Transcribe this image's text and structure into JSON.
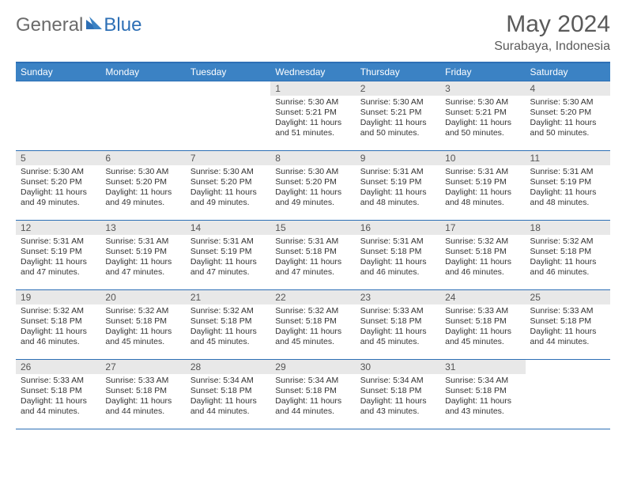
{
  "logo": {
    "part1": "General",
    "part2": "Blue"
  },
  "title": "May 2024",
  "location": "Surabaya, Indonesia",
  "colors": {
    "header_bg": "#3b82c4",
    "accent": "#2d6fb5",
    "daynum_bg": "#e8e8e8",
    "text": "#333333",
    "muted": "#5a5a5a"
  },
  "weekdays": [
    "Sunday",
    "Monday",
    "Tuesday",
    "Wednesday",
    "Thursday",
    "Friday",
    "Saturday"
  ],
  "weeks": [
    [
      {
        "day": "",
        "sunrise": "",
        "sunset": "",
        "daylight": ""
      },
      {
        "day": "",
        "sunrise": "",
        "sunset": "",
        "daylight": ""
      },
      {
        "day": "",
        "sunrise": "",
        "sunset": "",
        "daylight": ""
      },
      {
        "day": "1",
        "sunrise": "Sunrise: 5:30 AM",
        "sunset": "Sunset: 5:21 PM",
        "daylight": "Daylight: 11 hours and 51 minutes."
      },
      {
        "day": "2",
        "sunrise": "Sunrise: 5:30 AM",
        "sunset": "Sunset: 5:21 PM",
        "daylight": "Daylight: 11 hours and 50 minutes."
      },
      {
        "day": "3",
        "sunrise": "Sunrise: 5:30 AM",
        "sunset": "Sunset: 5:21 PM",
        "daylight": "Daylight: 11 hours and 50 minutes."
      },
      {
        "day": "4",
        "sunrise": "Sunrise: 5:30 AM",
        "sunset": "Sunset: 5:20 PM",
        "daylight": "Daylight: 11 hours and 50 minutes."
      }
    ],
    [
      {
        "day": "5",
        "sunrise": "Sunrise: 5:30 AM",
        "sunset": "Sunset: 5:20 PM",
        "daylight": "Daylight: 11 hours and 49 minutes."
      },
      {
        "day": "6",
        "sunrise": "Sunrise: 5:30 AM",
        "sunset": "Sunset: 5:20 PM",
        "daylight": "Daylight: 11 hours and 49 minutes."
      },
      {
        "day": "7",
        "sunrise": "Sunrise: 5:30 AM",
        "sunset": "Sunset: 5:20 PM",
        "daylight": "Daylight: 11 hours and 49 minutes."
      },
      {
        "day": "8",
        "sunrise": "Sunrise: 5:30 AM",
        "sunset": "Sunset: 5:20 PM",
        "daylight": "Daylight: 11 hours and 49 minutes."
      },
      {
        "day": "9",
        "sunrise": "Sunrise: 5:31 AM",
        "sunset": "Sunset: 5:19 PM",
        "daylight": "Daylight: 11 hours and 48 minutes."
      },
      {
        "day": "10",
        "sunrise": "Sunrise: 5:31 AM",
        "sunset": "Sunset: 5:19 PM",
        "daylight": "Daylight: 11 hours and 48 minutes."
      },
      {
        "day": "11",
        "sunrise": "Sunrise: 5:31 AM",
        "sunset": "Sunset: 5:19 PM",
        "daylight": "Daylight: 11 hours and 48 minutes."
      }
    ],
    [
      {
        "day": "12",
        "sunrise": "Sunrise: 5:31 AM",
        "sunset": "Sunset: 5:19 PM",
        "daylight": "Daylight: 11 hours and 47 minutes."
      },
      {
        "day": "13",
        "sunrise": "Sunrise: 5:31 AM",
        "sunset": "Sunset: 5:19 PM",
        "daylight": "Daylight: 11 hours and 47 minutes."
      },
      {
        "day": "14",
        "sunrise": "Sunrise: 5:31 AM",
        "sunset": "Sunset: 5:19 PM",
        "daylight": "Daylight: 11 hours and 47 minutes."
      },
      {
        "day": "15",
        "sunrise": "Sunrise: 5:31 AM",
        "sunset": "Sunset: 5:18 PM",
        "daylight": "Daylight: 11 hours and 47 minutes."
      },
      {
        "day": "16",
        "sunrise": "Sunrise: 5:31 AM",
        "sunset": "Sunset: 5:18 PM",
        "daylight": "Daylight: 11 hours and 46 minutes."
      },
      {
        "day": "17",
        "sunrise": "Sunrise: 5:32 AM",
        "sunset": "Sunset: 5:18 PM",
        "daylight": "Daylight: 11 hours and 46 minutes."
      },
      {
        "day": "18",
        "sunrise": "Sunrise: 5:32 AM",
        "sunset": "Sunset: 5:18 PM",
        "daylight": "Daylight: 11 hours and 46 minutes."
      }
    ],
    [
      {
        "day": "19",
        "sunrise": "Sunrise: 5:32 AM",
        "sunset": "Sunset: 5:18 PM",
        "daylight": "Daylight: 11 hours and 46 minutes."
      },
      {
        "day": "20",
        "sunrise": "Sunrise: 5:32 AM",
        "sunset": "Sunset: 5:18 PM",
        "daylight": "Daylight: 11 hours and 45 minutes."
      },
      {
        "day": "21",
        "sunrise": "Sunrise: 5:32 AM",
        "sunset": "Sunset: 5:18 PM",
        "daylight": "Daylight: 11 hours and 45 minutes."
      },
      {
        "day": "22",
        "sunrise": "Sunrise: 5:32 AM",
        "sunset": "Sunset: 5:18 PM",
        "daylight": "Daylight: 11 hours and 45 minutes."
      },
      {
        "day": "23",
        "sunrise": "Sunrise: 5:33 AM",
        "sunset": "Sunset: 5:18 PM",
        "daylight": "Daylight: 11 hours and 45 minutes."
      },
      {
        "day": "24",
        "sunrise": "Sunrise: 5:33 AM",
        "sunset": "Sunset: 5:18 PM",
        "daylight": "Daylight: 11 hours and 45 minutes."
      },
      {
        "day": "25",
        "sunrise": "Sunrise: 5:33 AM",
        "sunset": "Sunset: 5:18 PM",
        "daylight": "Daylight: 11 hours and 44 minutes."
      }
    ],
    [
      {
        "day": "26",
        "sunrise": "Sunrise: 5:33 AM",
        "sunset": "Sunset: 5:18 PM",
        "daylight": "Daylight: 11 hours and 44 minutes."
      },
      {
        "day": "27",
        "sunrise": "Sunrise: 5:33 AM",
        "sunset": "Sunset: 5:18 PM",
        "daylight": "Daylight: 11 hours and 44 minutes."
      },
      {
        "day": "28",
        "sunrise": "Sunrise: 5:34 AM",
        "sunset": "Sunset: 5:18 PM",
        "daylight": "Daylight: 11 hours and 44 minutes."
      },
      {
        "day": "29",
        "sunrise": "Sunrise: 5:34 AM",
        "sunset": "Sunset: 5:18 PM",
        "daylight": "Daylight: 11 hours and 44 minutes."
      },
      {
        "day": "30",
        "sunrise": "Sunrise: 5:34 AM",
        "sunset": "Sunset: 5:18 PM",
        "daylight": "Daylight: 11 hours and 43 minutes."
      },
      {
        "day": "31",
        "sunrise": "Sunrise: 5:34 AM",
        "sunset": "Sunset: 5:18 PM",
        "daylight": "Daylight: 11 hours and 43 minutes."
      },
      {
        "day": "",
        "sunrise": "",
        "sunset": "",
        "daylight": ""
      }
    ]
  ]
}
